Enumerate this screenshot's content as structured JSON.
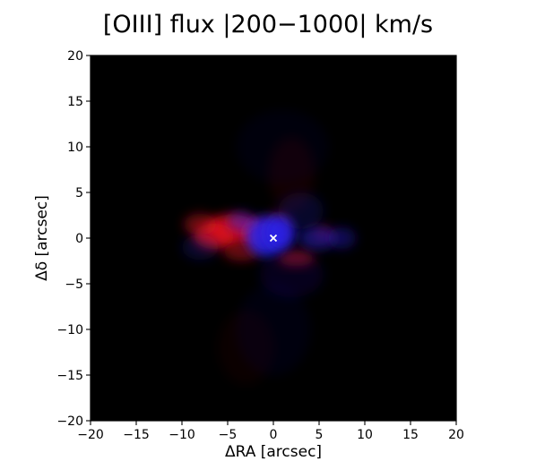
{
  "chart_data": {
    "type": "heatmap",
    "title": "[OIII] flux |200−1000| km/s",
    "xlabel": "ΔRA [arcsec]",
    "ylabel": "Δδ [arcsec]",
    "xlim": [
      -20,
      20
    ],
    "ylim": [
      -20,
      20
    ],
    "xticks": [
      -20,
      -15,
      -10,
      -5,
      0,
      5,
      10,
      15,
      20
    ],
    "yticks": [
      -20,
      -15,
      -10,
      -5,
      0,
      5,
      10,
      15,
      20
    ],
    "xtick_labels": [
      "−20",
      "−15",
      "−10",
      "−5",
      "0",
      "5",
      "10",
      "15",
      "20"
    ],
    "ytick_labels": [
      "−20",
      "−15",
      "−10",
      "−5",
      "0",
      "5",
      "10",
      "15",
      "20"
    ],
    "background_color": "#000000",
    "colors": {
      "redshifted": "#e0101e",
      "blueshifted": "#2a22e8",
      "marker": "#ffffff"
    },
    "emission": {
      "red": [
        {
          "x": -4.5,
          "y": 1.0,
          "rx": 2.8,
          "ry": 1.6,
          "intensity": 0.85
        },
        {
          "x": -6.5,
          "y": 0.2,
          "rx": 2.2,
          "ry": 1.4,
          "intensity": 0.75
        },
        {
          "x": -2.0,
          "y": 0.6,
          "rx": 1.6,
          "ry": 1.3,
          "intensity": 0.8
        },
        {
          "x": -8.0,
          "y": 1.5,
          "rx": 1.8,
          "ry": 1.2,
          "intensity": 0.45
        },
        {
          "x": 2.5,
          "y": -2.2,
          "rx": 2.0,
          "ry": 0.9,
          "intensity": 0.45
        },
        {
          "x": -3.5,
          "y": -1.5,
          "rx": 2.0,
          "ry": 1.0,
          "intensity": 0.45
        },
        {
          "x": 0.5,
          "y": 1.5,
          "rx": 1.2,
          "ry": 1.5,
          "intensity": 0.35
        },
        {
          "x": 5.5,
          "y": 0.5,
          "rx": 1.2,
          "ry": 0.9,
          "intensity": 0.25
        },
        {
          "x": 2.0,
          "y": 7.0,
          "rx": 2.5,
          "ry": 4.0,
          "intensity": 0.08
        },
        {
          "x": -3.0,
          "y": -12.0,
          "rx": 3.0,
          "ry": 4.0,
          "intensity": 0.05
        }
      ],
      "blue": [
        {
          "x": -0.8,
          "y": 0.2,
          "rx": 2.2,
          "ry": 2.2,
          "intensity": 0.9
        },
        {
          "x": 0.8,
          "y": 0.6,
          "rx": 1.6,
          "ry": 1.8,
          "intensity": 0.85
        },
        {
          "x": -3.5,
          "y": 1.8,
          "rx": 1.5,
          "ry": 1.1,
          "intensity": 0.45
        },
        {
          "x": 4.8,
          "y": 0.0,
          "rx": 2.0,
          "ry": 1.3,
          "intensity": 0.45
        },
        {
          "x": 7.5,
          "y": 0.0,
          "rx": 1.5,
          "ry": 1.2,
          "intensity": 0.35
        },
        {
          "x": 3.0,
          "y": 3.0,
          "rx": 2.5,
          "ry": 2.0,
          "intensity": 0.18
        },
        {
          "x": 2.0,
          "y": -4.0,
          "rx": 3.5,
          "ry": 2.5,
          "intensity": 0.12
        },
        {
          "x": -8.0,
          "y": -1.0,
          "rx": 2.0,
          "ry": 1.4,
          "intensity": 0.2
        },
        {
          "x": 0.0,
          "y": -10.0,
          "rx": 4.0,
          "ry": 5.0,
          "intensity": 0.06
        },
        {
          "x": 1.0,
          "y": 10.0,
          "rx": 5.0,
          "ry": 4.0,
          "intensity": 0.05
        }
      ]
    },
    "marker": {
      "x": 0,
      "y": 0,
      "symbol": "x"
    }
  }
}
